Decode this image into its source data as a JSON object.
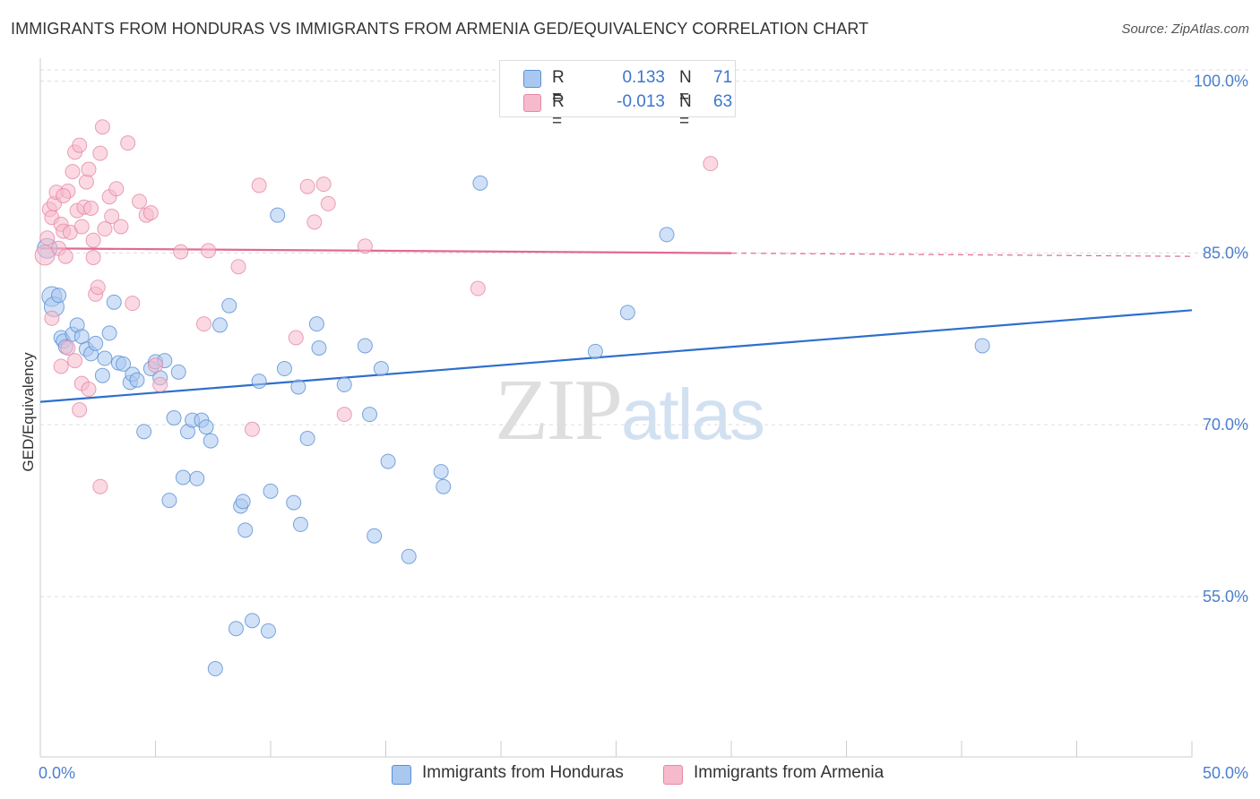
{
  "header": {
    "title": "IMMIGRANTS FROM HONDURAS VS IMMIGRANTS FROM ARMENIA GED/EQUIVALENCY CORRELATION CHART",
    "source": "Source: ZipAtlas.com"
  },
  "watermark": {
    "zip": "ZIP",
    "atlas": "atlas"
  },
  "legend": {
    "rows": [
      {
        "r_label": "R =",
        "r_value": "0.133",
        "n_label": "N =",
        "n_value": "71",
        "color": "#a9c8f0"
      },
      {
        "r_label": "R =",
        "r_value": "-0.013",
        "n_label": "N =",
        "n_value": "63",
        "color": "#f7b9cc"
      }
    ]
  },
  "bottom_legend": {
    "series_a": "Immigrants from Honduras",
    "series_b": "Immigrants from Armenia"
  },
  "chart_data": {
    "type": "scatter",
    "ylabel": "GED/Equivalency",
    "x_ticks": [
      "0.0%",
      "50.0%"
    ],
    "y_ticks": [
      "100.0%",
      "85.0%",
      "70.0%",
      "55.0%"
    ],
    "xlim": [
      0,
      50
    ],
    "ylim": [
      41,
      102
    ],
    "y_grid": [
      100,
      85,
      70,
      55
    ],
    "colors": {
      "honduras_fill": "#a9c8f0",
      "honduras_stroke": "#5b8fd4",
      "honduras_line": "#2e6fcc",
      "armenia_fill": "#f7b9cc",
      "armenia_stroke": "#e48aa6",
      "armenia_line": "#e06a92"
    },
    "series": [
      {
        "name": "Immigrants from Honduras",
        "trend": {
          "x0": 0,
          "y0": 72.0,
          "x1": 50,
          "y1": 80.0
        },
        "points": [
          [
            0.3,
            85.4
          ],
          [
            0.5,
            81.2
          ],
          [
            0.6,
            80.3
          ],
          [
            0.8,
            81.3
          ],
          [
            0.9,
            77.6
          ],
          [
            1.0,
            77.3
          ],
          [
            1.1,
            76.8
          ],
          [
            1.4,
            77.9
          ],
          [
            1.6,
            78.7
          ],
          [
            1.8,
            77.7
          ],
          [
            2.0,
            76.6
          ],
          [
            2.2,
            76.2
          ],
          [
            2.4,
            77.1
          ],
          [
            2.7,
            74.3
          ],
          [
            2.8,
            75.8
          ],
          [
            3.0,
            78.0
          ],
          [
            3.2,
            80.7
          ],
          [
            3.4,
            75.4
          ],
          [
            3.6,
            75.3
          ],
          [
            3.9,
            73.7
          ],
          [
            4.0,
            74.4
          ],
          [
            4.2,
            73.9
          ],
          [
            4.5,
            69.4
          ],
          [
            4.8,
            74.9
          ],
          [
            5.0,
            75.5
          ],
          [
            5.2,
            74.1
          ],
          [
            5.4,
            75.6
          ],
          [
            5.6,
            63.4
          ],
          [
            5.8,
            70.6
          ],
          [
            6.0,
            74.6
          ],
          [
            6.2,
            65.4
          ],
          [
            6.4,
            69.4
          ],
          [
            6.6,
            70.4
          ],
          [
            6.8,
            65.3
          ],
          [
            7.0,
            70.4
          ],
          [
            7.2,
            69.8
          ],
          [
            7.4,
            68.6
          ],
          [
            7.6,
            48.7
          ],
          [
            7.8,
            78.7
          ],
          [
            8.2,
            80.4
          ],
          [
            8.5,
            52.2
          ],
          [
            8.7,
            62.9
          ],
          [
            8.8,
            63.3
          ],
          [
            8.9,
            60.8
          ],
          [
            9.2,
            52.9
          ],
          [
            9.5,
            73.8
          ],
          [
            9.9,
            52.0
          ],
          [
            10.0,
            64.2
          ],
          [
            10.3,
            88.3
          ],
          [
            10.6,
            74.9
          ],
          [
            11.0,
            63.2
          ],
          [
            11.2,
            73.3
          ],
          [
            11.3,
            61.3
          ],
          [
            11.6,
            68.8
          ],
          [
            12.0,
            78.8
          ],
          [
            12.1,
            76.7
          ],
          [
            13.2,
            73.5
          ],
          [
            14.1,
            76.9
          ],
          [
            14.3,
            70.9
          ],
          [
            14.5,
            60.3
          ],
          [
            14.8,
            74.9
          ],
          [
            15.1,
            66.8
          ],
          [
            16.0,
            58.5
          ],
          [
            17.4,
            65.9
          ],
          [
            17.5,
            64.6
          ],
          [
            19.1,
            91.1
          ],
          [
            24.1,
            76.4
          ],
          [
            25.5,
            79.8
          ],
          [
            27.2,
            86.6
          ],
          [
            40.9,
            76.9
          ],
          [
            26.0,
            100.8
          ]
        ]
      },
      {
        "name": "Immigrants from Armenia",
        "trend": {
          "x0": 0,
          "y0": 85.4,
          "x1": 50,
          "y1": 84.7
        },
        "points": [
          [
            0.2,
            84.8
          ],
          [
            0.3,
            86.3
          ],
          [
            0.4,
            88.8
          ],
          [
            0.5,
            88.1
          ],
          [
            0.6,
            89.3
          ],
          [
            0.7,
            90.3
          ],
          [
            0.8,
            85.4
          ],
          [
            0.9,
            87.5
          ],
          [
            1.0,
            86.9
          ],
          [
            1.1,
            84.7
          ],
          [
            1.2,
            90.4
          ],
          [
            1.3,
            86.8
          ],
          [
            1.4,
            92.1
          ],
          [
            1.5,
            93.8
          ],
          [
            1.6,
            88.7
          ],
          [
            1.7,
            94.4
          ],
          [
            1.8,
            87.3
          ],
          [
            1.9,
            89.0
          ],
          [
            2.0,
            91.2
          ],
          [
            2.1,
            92.3
          ],
          [
            2.2,
            88.9
          ],
          [
            2.3,
            84.6
          ],
          [
            2.4,
            81.4
          ],
          [
            2.5,
            82.0
          ],
          [
            2.6,
            93.7
          ],
          [
            2.7,
            96.0
          ],
          [
            2.8,
            87.1
          ],
          [
            3.0,
            89.9
          ],
          [
            3.1,
            88.2
          ],
          [
            3.3,
            90.6
          ],
          [
            3.5,
            87.3
          ],
          [
            3.8,
            94.6
          ],
          [
            4.0,
            80.6
          ],
          [
            4.3,
            89.5
          ],
          [
            4.6,
            88.3
          ],
          [
            4.8,
            88.5
          ],
          [
            5.0,
            75.2
          ],
          [
            5.2,
            73.5
          ],
          [
            6.1,
            85.1
          ],
          [
            7.1,
            78.8
          ],
          [
            7.3,
            85.2
          ],
          [
            8.6,
            83.8
          ],
          [
            9.2,
            69.6
          ],
          [
            9.5,
            90.9
          ],
          [
            11.1,
            77.6
          ],
          [
            11.6,
            90.8
          ],
          [
            11.9,
            87.7
          ],
          [
            12.3,
            91.0
          ],
          [
            12.5,
            89.3
          ],
          [
            13.2,
            70.9
          ],
          [
            14.1,
            85.6
          ],
          [
            19.0,
            81.9
          ],
          [
            29.1,
            92.8
          ],
          [
            0.5,
            79.3
          ],
          [
            0.9,
            75.1
          ],
          [
            1.2,
            76.7
          ],
          [
            1.5,
            75.6
          ],
          [
            1.7,
            71.3
          ],
          [
            1.8,
            73.6
          ],
          [
            2.1,
            73.1
          ],
          [
            2.6,
            64.6
          ],
          [
            2.3,
            86.1
          ],
          [
            1.0,
            90.0
          ]
        ]
      }
    ]
  }
}
